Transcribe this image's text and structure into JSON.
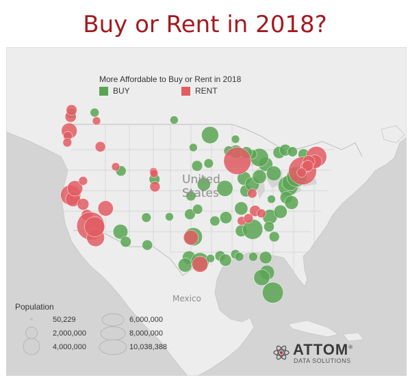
{
  "title": "Buy or Rent in 2018?",
  "legend": {
    "title": "More Affordable to Buy or Rent in 2018",
    "items": [
      {
        "label": "BUY",
        "color": "#5aa454"
      },
      {
        "label": "RENT",
        "color": "#e05d63"
      }
    ]
  },
  "labels": {
    "united": "United",
    "states": "States",
    "mexico": "Mexico"
  },
  "population_legend": {
    "title": "Population",
    "values": [
      "50,229",
      "2,000,000",
      "4,000,000",
      "6,000,000",
      "8,000,000",
      "10,038,388"
    ]
  },
  "logo": {
    "word": "ATTOM",
    "registered": "®",
    "sub": "DATA SOLUTIONS"
  },
  "chart_data": {
    "type": "scatter",
    "x_label": "",
    "y_label": "",
    "series": [
      {
        "name": "BUY",
        "color": "#5aa454",
        "points": [
          [
            -122.3,
            47.6,
            0.6
          ],
          [
            -117.4,
            47.7,
            0.4
          ],
          [
            -111.9,
            40.7,
            0.7
          ],
          [
            -104.9,
            39.7,
            0.8
          ],
          [
            -106.6,
            35.1,
            0.5
          ],
          [
            -112.0,
            33.4,
            2.0
          ],
          [
            -110.9,
            32.2,
            0.8
          ],
          [
            -106.4,
            31.8,
            0.7
          ],
          [
            -97.5,
            35.5,
            0.8
          ],
          [
            -95.9,
            36.1,
            0.6
          ],
          [
            -96.8,
            32.8,
            3.5
          ],
          [
            -97.7,
            30.3,
            1.5
          ],
          [
            -98.5,
            29.4,
            1.7
          ],
          [
            -95.4,
            29.8,
            3.5
          ],
          [
            -94.6,
            39.1,
            1.5
          ],
          [
            -96.0,
            41.3,
            0.8
          ],
          [
            -93.6,
            41.6,
            0.5
          ],
          [
            -93.3,
            45.0,
            3.0
          ],
          [
            -90.2,
            38.6,
            2.5
          ],
          [
            -90.0,
            35.1,
            1.1
          ],
          [
            -92.3,
            34.7,
            0.6
          ],
          [
            -91.2,
            30.5,
            0.7
          ],
          [
            -90.1,
            30.0,
            1.1
          ],
          [
            -86.8,
            36.2,
            1.5
          ],
          [
            -86.8,
            33.5,
            1.0
          ],
          [
            -84.4,
            33.7,
            4.5
          ],
          [
            -85.8,
            38.3,
            1.1
          ],
          [
            -86.2,
            39.8,
            1.6
          ],
          [
            -84.5,
            39.1,
            1.8
          ],
          [
            -83.0,
            40.0,
            1.7
          ],
          [
            -81.7,
            41.5,
            1.8
          ],
          [
            -83.0,
            42.3,
            3.5
          ],
          [
            -80.0,
            40.4,
            2.0
          ],
          [
            -87.9,
            43.0,
            1.5
          ],
          [
            -89.4,
            43.1,
            0.6
          ],
          [
            -81.4,
            28.5,
            2.0
          ],
          [
            -82.5,
            27.9,
            2.5
          ],
          [
            -81.7,
            30.3,
            1.2
          ],
          [
            -80.2,
            26.1,
            5.0
          ],
          [
            -77.0,
            38.9,
            4.5
          ],
          [
            -76.6,
            39.3,
            2.5
          ],
          [
            -75.2,
            40.0,
            4.5
          ],
          [
            -80.8,
            35.2,
            2.0
          ],
          [
            -78.6,
            35.8,
            1.5
          ],
          [
            -79.9,
            32.8,
            0.7
          ],
          [
            -81.0,
            34.0,
            0.7
          ],
          [
            -77.4,
            37.5,
            1.2
          ],
          [
            -76.3,
            36.9,
            1.6
          ],
          [
            -73.8,
            42.7,
            0.8
          ],
          [
            -78.9,
            42.9,
            1.1
          ],
          [
            -77.6,
            43.2,
            1.0
          ],
          [
            -76.1,
            43.0,
            0.6
          ],
          [
            -84.5,
            42.7,
            0.5
          ],
          [
            -85.7,
            42.9,
            1.0
          ],
          [
            -88.0,
            44.5,
            0.3
          ],
          [
            -80.5,
            37.3,
            0.3
          ],
          [
            -100.8,
            46.8,
            0.3
          ],
          [
            -96.8,
            43.5,
            0.3
          ],
          [
            -101.8,
            35.2,
            0.3
          ],
          [
            -97.3,
            37.7,
            0.6
          ],
          [
            -93.2,
            30.2,
            0.3
          ],
          [
            -88.0,
            30.7,
            0.5
          ],
          [
            -87.2,
            30.4,
            0.4
          ],
          [
            -84.3,
            30.4,
            0.4
          ]
        ]
      },
      {
        "name": "RENT",
        "color": "#e05d63",
        "points": [
          [
            -122.4,
            37.8,
            4.5
          ],
          [
            -121.9,
            37.3,
            2.0
          ],
          [
            -121.5,
            38.6,
            2.3
          ],
          [
            -119.8,
            36.7,
            1.0
          ],
          [
            -119.0,
            35.4,
            0.9
          ],
          [
            -118.2,
            34.1,
            10.0
          ],
          [
            -117.2,
            32.7,
            3.3
          ],
          [
            -117.4,
            34.0,
            4.5
          ],
          [
            -122.7,
            45.5,
            2.4
          ],
          [
            -123.0,
            44.9,
            0.4
          ],
          [
            -123.1,
            44.1,
            0.4
          ],
          [
            -116.2,
            43.6,
            0.7
          ],
          [
            -115.1,
            36.2,
            2.2
          ],
          [
            -119.8,
            39.5,
            0.4
          ],
          [
            -122.4,
            47.2,
            0.9
          ],
          [
            -122.2,
            48.0,
            0.8
          ],
          [
            -104.8,
            38.8,
            0.7
          ],
          [
            -105.1,
            40.6,
            0.3
          ],
          [
            -105.0,
            40.4,
            0.3
          ],
          [
            -87.6,
            41.9,
            9.5
          ],
          [
            -74.0,
            40.7,
            10.0
          ],
          [
            -71.1,
            42.4,
            4.8
          ],
          [
            -71.4,
            41.8,
            1.6
          ],
          [
            -72.7,
            41.8,
            1.2
          ],
          [
            -73.2,
            41.2,
            0.9
          ],
          [
            -72.9,
            41.3,
            0.9
          ],
          [
            -74.2,
            40.5,
            0.5
          ],
          [
            -95.4,
            29.5,
            2.5
          ],
          [
            -97.3,
            32.7,
            2.0
          ],
          [
            -86.7,
            34.7,
            0.4
          ],
          [
            -83.9,
            35.9,
            0.9
          ],
          [
            -82.6,
            35.6,
            0.4
          ],
          [
            -85.3,
            35.0,
            0.5
          ],
          [
            -84.5,
            38.0,
            0.5
          ],
          [
            -117.0,
            46.7,
            0.3
          ],
          [
            -113.0,
            41.2,
            0.3
          ]
        ]
      }
    ]
  }
}
